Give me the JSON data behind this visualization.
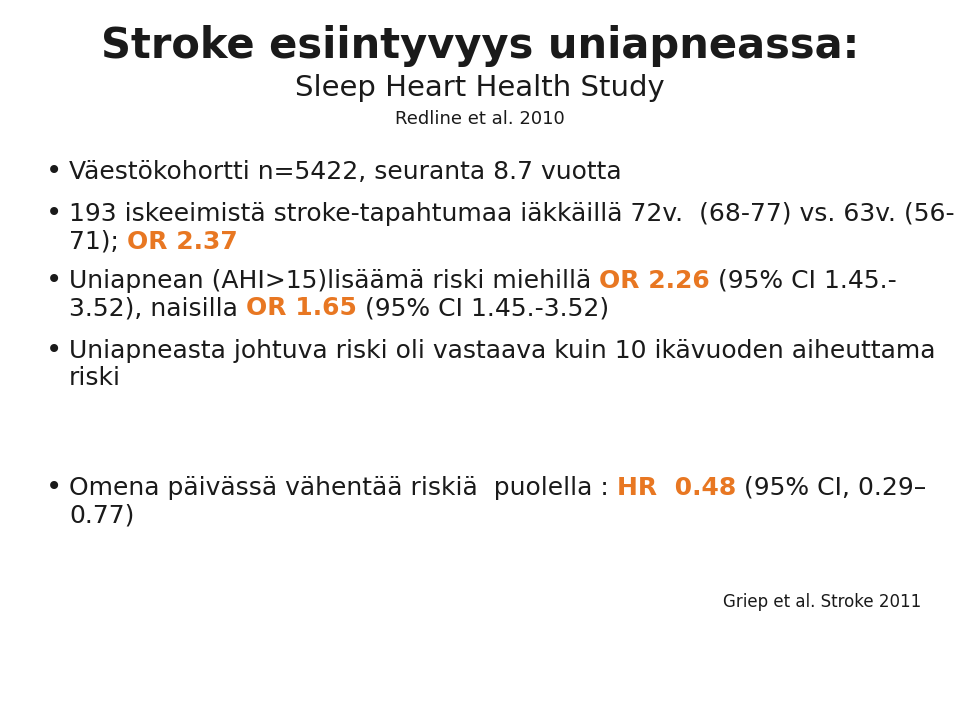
{
  "title_line1": "Stroke esiintyvyys uniapneassa:",
  "title_line2": "Sleep Heart Health Study",
  "title_line3": "Redline et al. 2010",
  "highlight_color": "#E87722",
  "text_color": "#1a1a1a",
  "bg_color": "#ffffff",
  "title_fontsize": 30,
  "subtitle_fontsize": 21,
  "ref_fontsize": 13,
  "bullet_fontsize": 18,
  "footnote_fontsize": 12
}
